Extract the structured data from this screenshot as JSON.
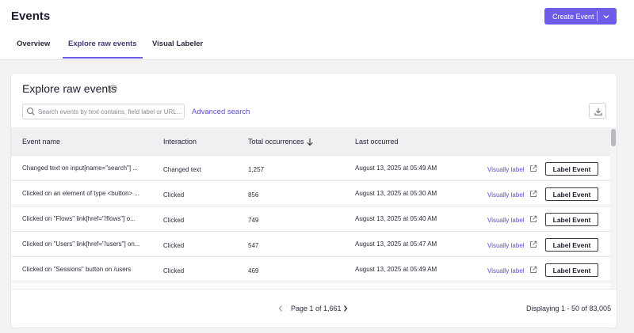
{
  "header": {
    "title": "Events",
    "create_button": "Create Event"
  },
  "tabs": [
    {
      "label": "Overview",
      "active": false
    },
    {
      "label": "Explore raw events",
      "active": true
    },
    {
      "label": "Visual Labeler",
      "active": false
    }
  ],
  "card": {
    "title": "Explore raw events",
    "search": {
      "placeholder": "Search events by text contains, field label or URL...",
      "value": ""
    },
    "advanced_search": "Advanced search"
  },
  "table": {
    "columns": {
      "event_name": "Event name",
      "interaction": "Interaction",
      "total_occurrences": "Total occurrences",
      "last_occurred": "Last occurred"
    },
    "sort": {
      "column": "total_occurrences",
      "direction": "descending"
    },
    "rows": [
      {
        "name": "Changed text on input[name=\"search\"] ...",
        "interaction": "Changed text",
        "occurrences": "1,257",
        "last": "August 13, 2025 at 05:49 AM",
        "visually_label": "Visually label",
        "label_event": "Label Event"
      },
      {
        "name": "Clicked on an element of type <button> ...",
        "interaction": "Clicked",
        "occurrences": "856",
        "last": "August 13, 2025 at 05:30 AM",
        "visually_label": "Visually label",
        "label_event": "Label Event"
      },
      {
        "name": "Clicked on \"Flows\" link[href=\"/flows\"] o...",
        "interaction": "Clicked",
        "occurrences": "749",
        "last": "August 13, 2025 at 05:40 AM",
        "visually_label": "Visually label",
        "label_event": "Label Event"
      },
      {
        "name": "Clicked on \"Users\" link[href=\"/users\"] on...",
        "interaction": "Clicked",
        "occurrences": "547",
        "last": "August 13, 2025 at 05:47 AM",
        "visually_label": "Visually label",
        "label_event": "Label Event"
      },
      {
        "name": "Clicked on \"Sessions\" button on /users",
        "interaction": "Clicked",
        "occurrences": "469",
        "last": "August 13, 2025 at 05:49 AM",
        "visually_label": "Visually label",
        "label_event": "Label Event"
      }
    ]
  },
  "pagination": {
    "page_text": "Page 1 of 1,661",
    "displaying": "Displaying 1 - 50 of 83,005"
  },
  "colors": {
    "accent": "#6c5ce7",
    "link": "#5a4fd6",
    "header_bg": "#f0f0f3"
  },
  "icons": {
    "create_chevron": "chevron-down-icon",
    "info": "info-icon",
    "search": "search-icon",
    "download": "download-icon",
    "sort": "arrow-down-icon",
    "external": "external-link-icon",
    "prev": "chevron-left-icon",
    "next": "chevron-right-icon"
  }
}
